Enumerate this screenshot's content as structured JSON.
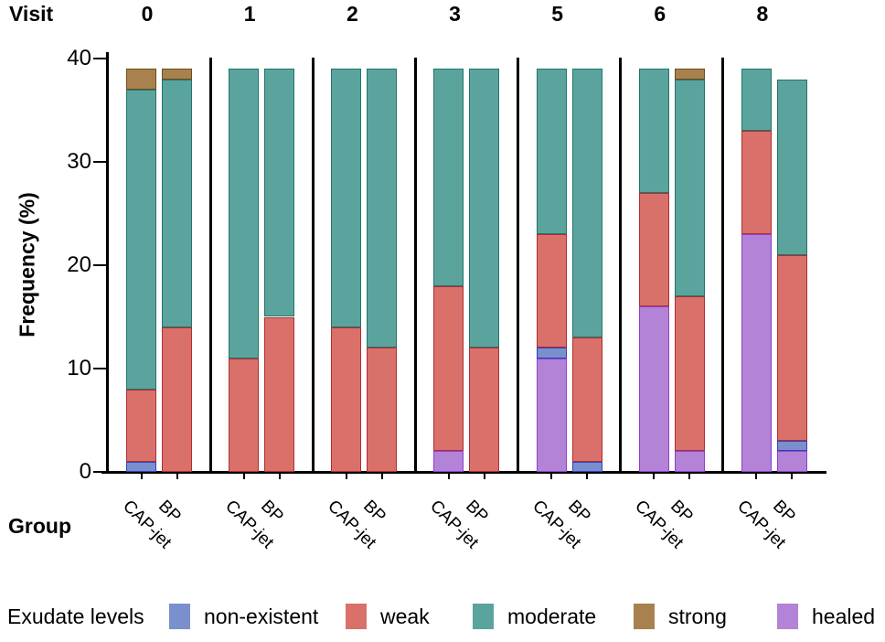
{
  "labels": {
    "visit_header": "Visit",
    "group_header": "Group"
  },
  "y_axis": {
    "label": "Frequency (%)",
    "ticks": [
      0,
      10,
      20,
      30,
      40
    ],
    "max": 40
  },
  "x_axis": {
    "groups": [
      "CAP-jet",
      "BP"
    ]
  },
  "legend": {
    "title": "Exudate levels",
    "items": [
      {
        "label": "non-existent",
        "color": "#7b8fcd"
      },
      {
        "label": "weak",
        "color": "#d9716a"
      },
      {
        "label": "moderate",
        "color": "#5ba49d"
      },
      {
        "label": "strong",
        "color": "#a8814e"
      },
      {
        "label": "healed",
        "color": "#b283d7"
      }
    ]
  },
  "chart_data": {
    "type": "bar",
    "subtype": "stacked-vertical-grouped-by-visit",
    "title": "",
    "xlabel": "Group",
    "ylabel": "Frequency (%)",
    "ylim": [
      0,
      40
    ],
    "yticks": [
      0,
      10,
      20,
      30,
      40
    ],
    "grid": false,
    "legend_position": "bottom",
    "levels": {
      "non-existent": {
        "fill": "#7b8fcd",
        "stroke": "#3240c0"
      },
      "weak": {
        "fill": "#d9716a",
        "stroke": "#b12d32"
      },
      "moderate": {
        "fill": "#5ba49d",
        "stroke": "#20756b"
      },
      "strong": {
        "fill": "#a8814e",
        "stroke": "#6b4e1f"
      },
      "healed": {
        "fill": "#b283d7",
        "stroke": "#8e3fd1"
      }
    },
    "visits": [
      {
        "visit": "0",
        "bars": [
          {
            "group": "CAP-jet",
            "segments": [
              {
                "level": "non-existent",
                "value": 1
              },
              {
                "level": "weak",
                "value": 7
              },
              {
                "level": "moderate",
                "value": 29
              },
              {
                "level": "strong",
                "value": 2
              }
            ]
          },
          {
            "group": "BP",
            "segments": [
              {
                "level": "weak",
                "value": 14
              },
              {
                "level": "moderate",
                "value": 24
              },
              {
                "level": "strong",
                "value": 1
              }
            ]
          }
        ]
      },
      {
        "visit": "1",
        "bars": [
          {
            "group": "CAP-jet",
            "segments": [
              {
                "level": "weak",
                "value": 11
              },
              {
                "level": "moderate",
                "value": 28
              }
            ]
          },
          {
            "group": "BP",
            "segments": [
              {
                "level": "weak",
                "value": 15
              },
              {
                "level": "moderate",
                "value": 24
              }
            ]
          }
        ]
      },
      {
        "visit": "2",
        "bars": [
          {
            "group": "CAP-jet",
            "segments": [
              {
                "level": "weak",
                "value": 14
              },
              {
                "level": "moderate",
                "value": 25
              }
            ]
          },
          {
            "group": "BP",
            "segments": [
              {
                "level": "weak",
                "value": 12
              },
              {
                "level": "moderate",
                "value": 27
              }
            ]
          }
        ]
      },
      {
        "visit": "3",
        "bars": [
          {
            "group": "CAP-jet",
            "segments": [
              {
                "level": "healed",
                "value": 2
              },
              {
                "level": "weak",
                "value": 16
              },
              {
                "level": "moderate",
                "value": 21
              }
            ]
          },
          {
            "group": "BP",
            "segments": [
              {
                "level": "weak",
                "value": 12
              },
              {
                "level": "moderate",
                "value": 27
              }
            ]
          }
        ]
      },
      {
        "visit": "5",
        "bars": [
          {
            "group": "CAP-jet",
            "segments": [
              {
                "level": "healed",
                "value": 11
              },
              {
                "level": "non-existent",
                "value": 1
              },
              {
                "level": "weak",
                "value": 11
              },
              {
                "level": "moderate",
                "value": 16
              }
            ]
          },
          {
            "group": "BP",
            "segments": [
              {
                "level": "non-existent",
                "value": 1
              },
              {
                "level": "weak",
                "value": 12
              },
              {
                "level": "moderate",
                "value": 26
              }
            ]
          }
        ]
      },
      {
        "visit": "6",
        "bars": [
          {
            "group": "CAP-jet",
            "segments": [
              {
                "level": "healed",
                "value": 16
              },
              {
                "level": "weak",
                "value": 11
              },
              {
                "level": "moderate",
                "value": 12
              }
            ]
          },
          {
            "group": "BP",
            "segments": [
              {
                "level": "healed",
                "value": 2
              },
              {
                "level": "weak",
                "value": 15
              },
              {
                "level": "moderate",
                "value": 21
              },
              {
                "level": "strong",
                "value": 1
              }
            ]
          }
        ]
      },
      {
        "visit": "8",
        "bars": [
          {
            "group": "CAP-jet",
            "segments": [
              {
                "level": "healed",
                "value": 23
              },
              {
                "level": "weak",
                "value": 10
              },
              {
                "level": "moderate",
                "value": 6
              }
            ]
          },
          {
            "group": "BP",
            "segments": [
              {
                "level": "healed",
                "value": 2
              },
              {
                "level": "non-existent",
                "value": 1
              },
              {
                "level": "weak",
                "value": 18
              },
              {
                "level": "moderate",
                "value": 17
              }
            ]
          }
        ]
      }
    ]
  }
}
